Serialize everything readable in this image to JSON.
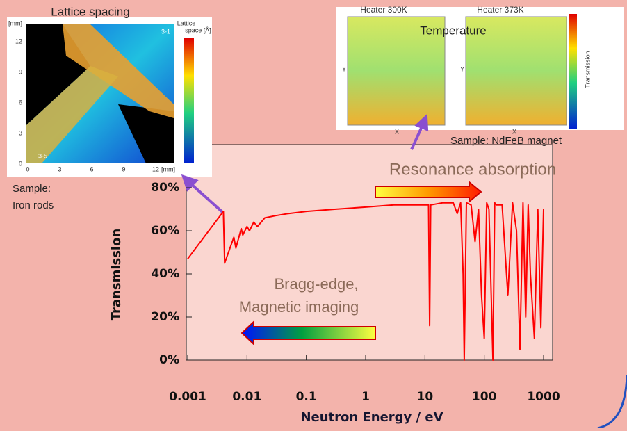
{
  "chart_data": {
    "type": "line",
    "y_label": "Transmission",
    "x_label": "Neutron Energy / eV",
    "x_scale": "log",
    "xlim": [
      0.001,
      1000
    ],
    "ylim": [
      0,
      100
    ],
    "xticks": [
      0.001,
      0.01,
      0.1,
      1,
      10,
      100,
      1000
    ],
    "yticks": [
      {
        "value": 0,
        "label": "0%"
      },
      {
        "value": 20,
        "label": "20%"
      },
      {
        "value": 40,
        "label": "40%"
      },
      {
        "value": 60,
        "label": "60%"
      },
      {
        "value": 80,
        "label": "80%"
      }
    ],
    "series": [
      {
        "color": "#ff0000",
        "x": [
          0.001,
          0.002,
          0.004,
          0.0042,
          0.006,
          0.0065,
          0.008,
          0.0085,
          0.01,
          0.011,
          0.013,
          0.015,
          0.02,
          0.03,
          0.05,
          0.1,
          0.3,
          1,
          3,
          10,
          11.5,
          12,
          12.5,
          20,
          30,
          35,
          40,
          44,
          46,
          50,
          60,
          70,
          80,
          90,
          100,
          110,
          120,
          140,
          150,
          160,
          200,
          250,
          300,
          350,
          400,
          450,
          500,
          550,
          600,
          700,
          800,
          900,
          1000
        ],
        "values": [
          47,
          58,
          69,
          45,
          57,
          52,
          61,
          58,
          62,
          60,
          64,
          62,
          66,
          67,
          68,
          69,
          70,
          71,
          72,
          72,
          72,
          16,
          72,
          73,
          73,
          68,
          73,
          40,
          0,
          73,
          72,
          55,
          70,
          30,
          10,
          73,
          70,
          0,
          73,
          72,
          72,
          30,
          73,
          60,
          5,
          73,
          20,
          72,
          40,
          10,
          70,
          15,
          70
        ]
      }
    ],
    "annotations": [
      "Resonance absorption",
      "Bragg-edge,",
      "Magnetic imaging"
    ]
  },
  "insets": {
    "lattice": {
      "title": "Lattice spacing",
      "ticks": [
        "12",
        "9",
        "6",
        "3",
        "0",
        "0",
        "3",
        "6",
        "9",
        "12"
      ],
      "unit": "[mm]",
      "regions": [
        "3-1",
        "3-5"
      ],
      "colorbar": [
        "Lattice",
        "space [Å]"
      ],
      "sample": [
        "Sample:",
        "Iron rods"
      ]
    },
    "temperature": {
      "title": "Temperature",
      "panels": [
        "Heater 300K",
        "Heater 373K"
      ],
      "axes": [
        "Y",
        "X"
      ],
      "colorbar": "Transmission",
      "sample": "Sample: NdFeB magnet"
    }
  }
}
